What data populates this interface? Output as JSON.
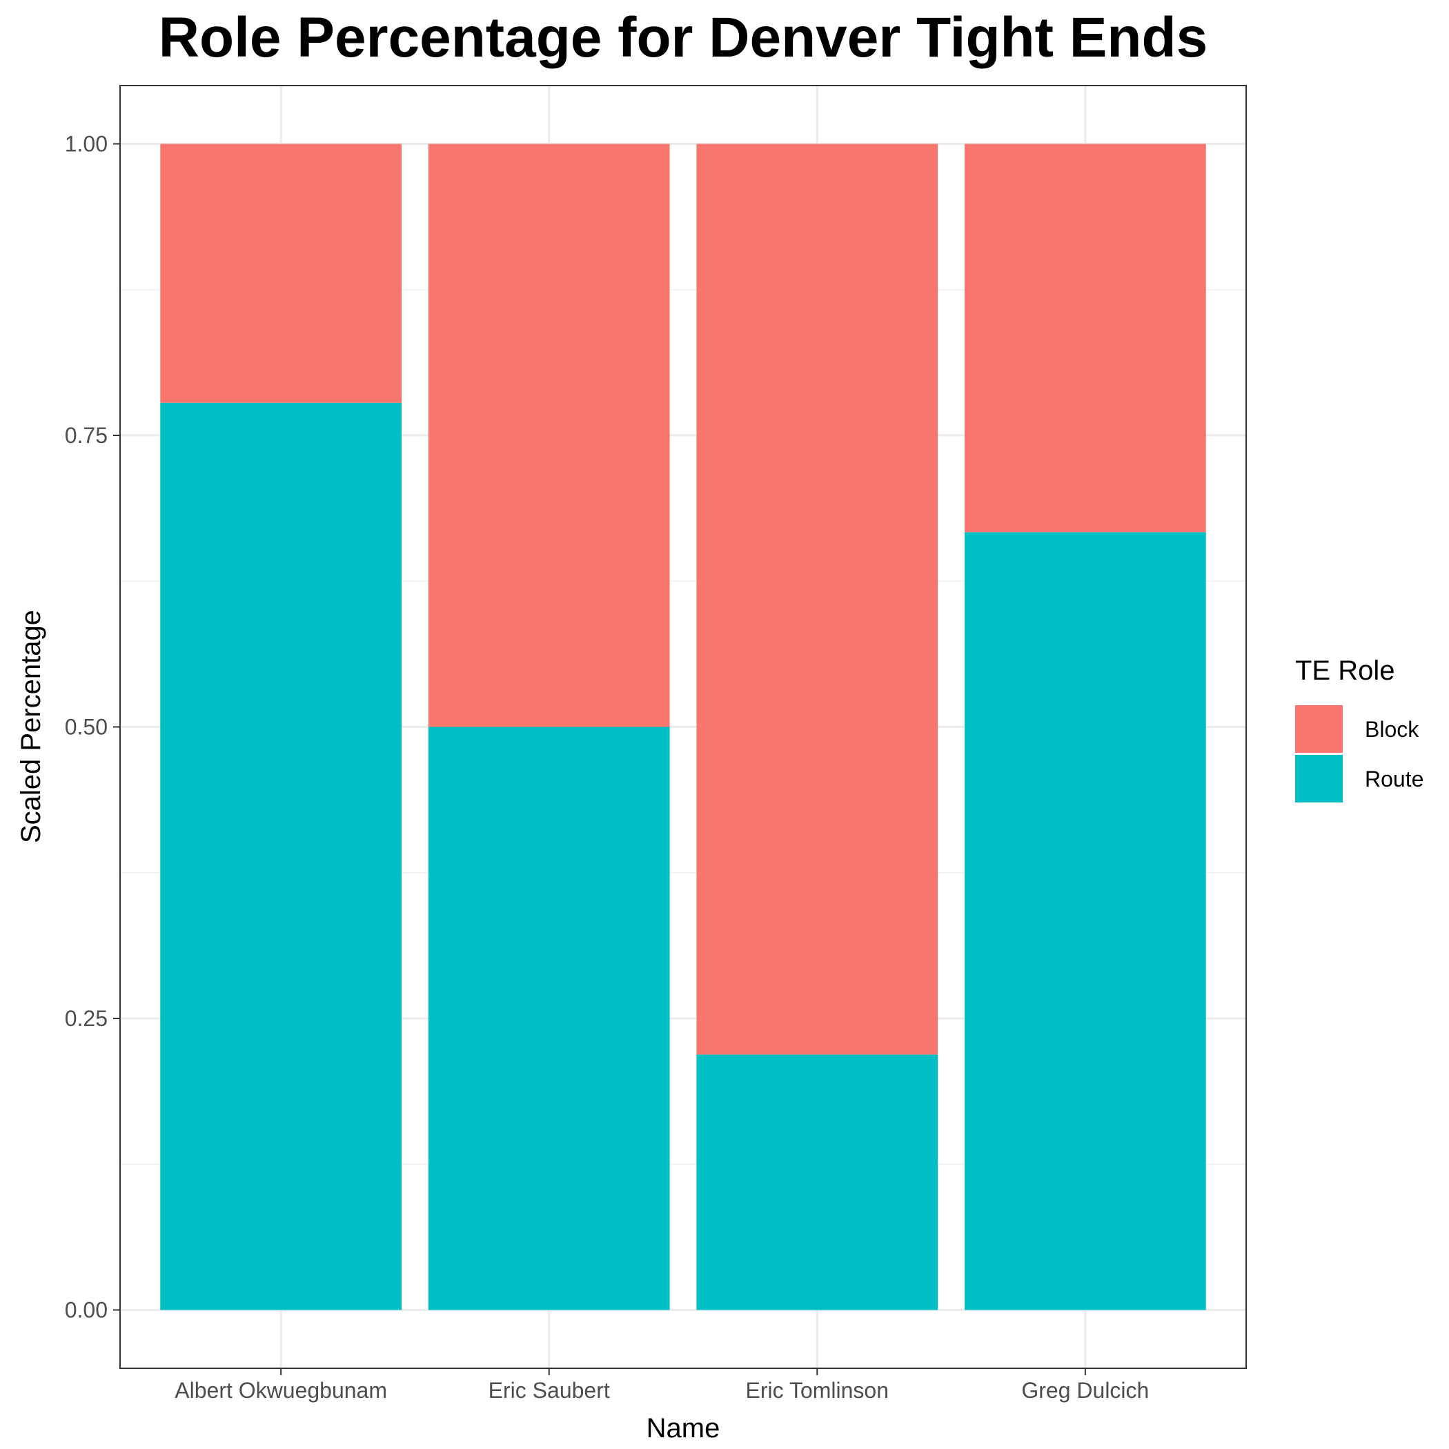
{
  "chart_data": {
    "type": "bar",
    "stacked": true,
    "title": "Role Percentage for Denver Tight Ends",
    "xlabel": "Name",
    "ylabel": "Scaled Percentage",
    "ylim": [
      -0.05,
      1.05
    ],
    "yticks": [
      0.0,
      0.25,
      0.5,
      0.75,
      1.0
    ],
    "ytick_labels": [
      "0.00",
      "0.25",
      "0.50",
      "0.75",
      "1.00"
    ],
    "grid": true,
    "legend_title": "TE Role",
    "legend_position": "right",
    "categories": [
      "Albert Okwuegbunam",
      "Eric Saubert",
      "Eric Tomlinson",
      "Greg Dulcich"
    ],
    "series": [
      {
        "name": "Route",
        "color": "#00BFC4",
        "values": [
          0.778,
          0.5,
          0.219,
          0.667
        ]
      },
      {
        "name": "Block",
        "color": "#F8766D",
        "values": [
          0.222,
          0.5,
          0.781,
          0.333
        ]
      }
    ]
  }
}
